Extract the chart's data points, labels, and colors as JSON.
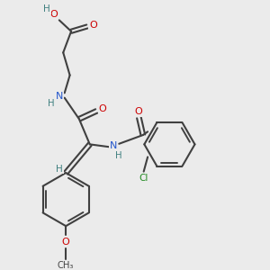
{
  "bg_color": "#ebebeb",
  "C": "#404040",
  "O": "#cc0000",
  "N": "#2255cc",
  "H": "#408080",
  "Cl": "#228b22",
  "bond_color": "#404040",
  "bond_lw": 1.5,
  "inner_lw": 1.4
}
